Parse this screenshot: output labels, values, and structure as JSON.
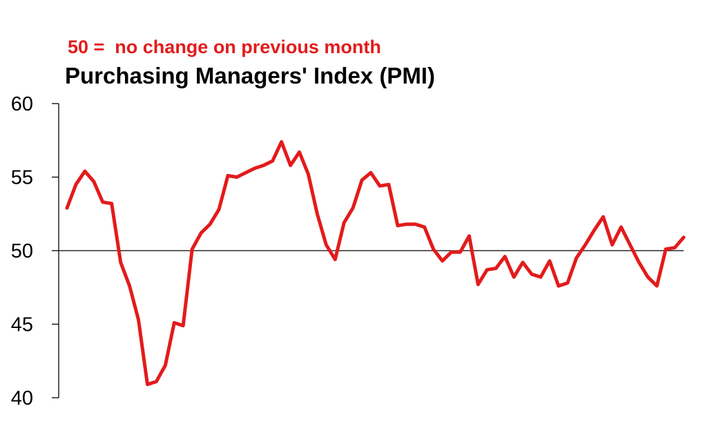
{
  "chart_data": {
    "type": "line",
    "title": "Purchasing Managers' Index (PMI)",
    "annotation": "50 =  no change on previous month",
    "xlabel": "",
    "ylabel": "",
    "ylim": [
      40,
      60
    ],
    "yticks": [
      40,
      45,
      50,
      55,
      60
    ],
    "reference_line": 50,
    "grid": false,
    "legend": "none",
    "colors": {
      "series": "#e31b1b",
      "reference": "#000000",
      "axis": "#000000"
    },
    "series": [
      {
        "values": [
          52.9,
          54.5,
          55.4,
          54.7,
          53.3,
          53.2,
          49.2,
          47.6,
          45.3,
          40.9,
          41.1,
          42.2,
          45.1,
          44.9,
          50.1,
          51.2,
          51.8,
          52.8,
          55.1,
          55.0,
          55.3,
          55.6,
          55.8,
          56.1,
          57.4,
          55.8,
          56.7,
          55.2,
          52.5,
          50.4,
          49.4,
          51.9,
          52.9,
          54.8,
          55.3,
          54.4,
          54.5,
          51.7,
          51.8,
          51.8,
          51.6,
          50.1,
          49.3,
          49.9,
          49.9,
          51.0,
          47.7,
          48.7,
          48.8,
          49.6,
          48.2,
          49.2,
          48.4,
          48.2,
          49.3,
          47.6,
          47.8,
          49.5,
          50.4,
          51.4,
          52.3,
          50.4,
          51.6,
          50.4,
          49.2,
          48.2,
          47.6,
          50.1,
          50.2,
          50.9
        ]
      }
    ]
  }
}
